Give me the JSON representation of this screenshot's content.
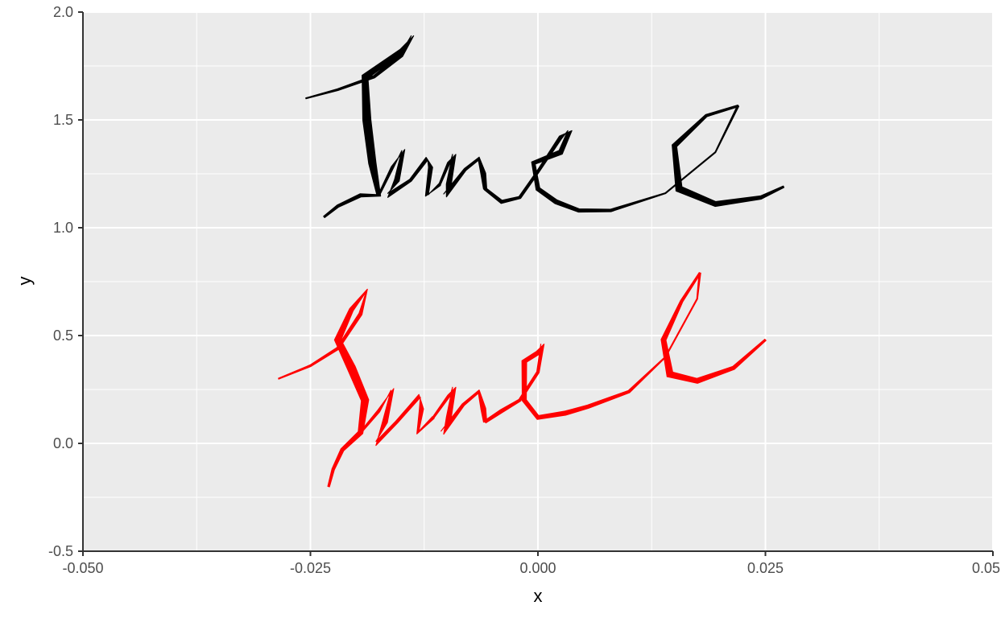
{
  "chart_data": {
    "type": "line",
    "title": "",
    "xlabel": "x",
    "ylabel": "y",
    "xlim": [
      -0.05,
      0.05
    ],
    "ylim": [
      -0.5,
      2.0
    ],
    "x_ticks": [
      -0.05,
      -0.025,
      0.0,
      0.025,
      0.05
    ],
    "x_tick_labels": [
      "-0.050",
      "-0.025",
      "0.000",
      "0.025",
      "0.05"
    ],
    "y_ticks": [
      -0.5,
      0.0,
      0.5,
      1.0,
      1.5,
      2.0
    ],
    "y_tick_labels": [
      "-0.5",
      "0.0",
      "0.5",
      "1.0",
      "1.5",
      "2.0"
    ],
    "grid": true,
    "legend": "none",
    "panel_background": "#ebebeb",
    "grid_color": "#ffffff",
    "series": [
      {
        "color": "#000000",
        "style": "signature-ribbon",
        "strokes": [
          {
            "part": "J",
            "path": [
              [
                -0.0255,
                1.6
              ],
              [
                -0.022,
                1.64
              ],
              [
                -0.018,
                1.7
              ],
              [
                -0.015,
                1.8
              ],
              [
                -0.0138,
                1.89
              ],
              [
                -0.015,
                1.82
              ],
              [
                -0.019,
                1.7
              ],
              [
                -0.0188,
                1.5
              ],
              [
                -0.0182,
                1.3
              ],
              [
                -0.0175,
                1.15
              ],
              [
                -0.0195,
                1.15
              ],
              [
                -0.022,
                1.1
              ],
              [
                -0.0235,
                1.05
              ]
            ],
            "widths": [
              1,
              2,
              3,
              4,
              3,
              5,
              8,
              10,
              9,
              5,
              4,
              3,
              2
            ]
          },
          {
            "part": "u",
            "path": [
              [
                -0.0175,
                1.15
              ],
              [
                -0.016,
                1.28
              ],
              [
                -0.0148,
                1.36
              ],
              [
                -0.0155,
                1.22
              ],
              [
                -0.0165,
                1.15
              ],
              [
                -0.014,
                1.22
              ],
              [
                -0.0122,
                1.32
              ],
              [
                -0.0118,
                1.28
              ],
              [
                -0.0122,
                1.15
              ],
              [
                -0.0108,
                1.2
              ]
            ],
            "widths": [
              2,
              3,
              4,
              6,
              5,
              3,
              4,
              5,
              4,
              3
            ]
          },
          {
            "part": "n",
            "path": [
              [
                -0.0108,
                1.2
              ],
              [
                -0.0098,
                1.3
              ],
              [
                -0.0092,
                1.34
              ],
              [
                -0.0098,
                1.2
              ],
              [
                -0.0102,
                1.15
              ],
              [
                -0.008,
                1.27
              ],
              [
                -0.0065,
                1.32
              ],
              [
                -0.006,
                1.25
              ],
              [
                -0.0058,
                1.18
              ]
            ],
            "widths": [
              2,
              3,
              4,
              6,
              5,
              3,
              4,
              6,
              4
            ]
          },
          {
            "part": "e",
            "path": [
              [
                -0.0058,
                1.18
              ],
              [
                -0.004,
                1.12
              ],
              [
                -0.002,
                1.14
              ],
              [
                0.0,
                1.26
              ],
              [
                0.0025,
                1.42
              ],
              [
                0.0035,
                1.45
              ],
              [
                0.0025,
                1.35
              ],
              [
                -0.0005,
                1.3
              ],
              [
                0.0,
                1.18
              ],
              [
                0.002,
                1.12
              ],
              [
                0.0045,
                1.08
              ],
              [
                0.008,
                1.08
              ],
              [
                0.014,
                1.16
              ],
              [
                0.0195,
                1.35
              ],
              [
                0.022,
                1.565
              ]
            ],
            "widths": [
              3,
              4,
              3,
              3,
              4,
              5,
              6,
              5,
              5,
              5,
              4,
              3,
              1,
              1,
              2
            ]
          },
          {
            "part": "C",
            "path": [
              [
                0.022,
                1.565
              ],
              [
                0.0185,
                1.52
              ],
              [
                0.015,
                1.38
              ],
              [
                0.0155,
                1.18
              ],
              [
                0.0195,
                1.11
              ],
              [
                0.0245,
                1.14
              ],
              [
                0.027,
                1.19
              ]
            ],
            "widths": [
              2,
              3,
              6,
              9,
              6,
              4,
              2
            ]
          }
        ]
      },
      {
        "color": "#ff0000",
        "style": "signature-ribbon",
        "strokes": [
          {
            "part": "J",
            "path": [
              [
                -0.0285,
                0.3
              ],
              [
                -0.025,
                0.36
              ],
              [
                -0.022,
                0.44
              ],
              [
                -0.0195,
                0.6
              ],
              [
                -0.0188,
                0.71
              ],
              [
                -0.0205,
                0.62
              ],
              [
                -0.022,
                0.48
              ],
              [
                -0.0205,
                0.35
              ],
              [
                -0.019,
                0.2
              ],
              [
                -0.0195,
                0.05
              ],
              [
                -0.0215,
                -0.03
              ],
              [
                -0.0225,
                -0.12
              ],
              [
                -0.023,
                -0.2
              ]
            ],
            "widths": [
              1,
              2,
              3,
              4,
              3,
              5,
              8,
              10,
              9,
              6,
              4,
              3,
              2
            ]
          },
          {
            "part": "u",
            "path": [
              [
                -0.0195,
                0.05
              ],
              [
                -0.0175,
                0.15
              ],
              [
                -0.016,
                0.25
              ],
              [
                -0.0168,
                0.1
              ],
              [
                -0.0178,
                0.0
              ],
              [
                -0.0155,
                0.1
              ],
              [
                -0.013,
                0.22
              ],
              [
                -0.0128,
                0.16
              ],
              [
                -0.0132,
                0.05
              ],
              [
                -0.0115,
                0.12
              ]
            ],
            "widths": [
              2,
              3,
              4,
              6,
              5,
              3,
              4,
              5,
              4,
              3
            ]
          },
          {
            "part": "n",
            "path": [
              [
                -0.0115,
                0.12
              ],
              [
                -0.0098,
                0.22
              ],
              [
                -0.0092,
                0.26
              ],
              [
                -0.0098,
                0.12
              ],
              [
                -0.0105,
                0.05
              ],
              [
                -0.0082,
                0.18
              ],
              [
                -0.0065,
                0.24
              ],
              [
                -0.006,
                0.16
              ],
              [
                -0.0058,
                0.1
              ]
            ],
            "widths": [
              2,
              3,
              4,
              6,
              5,
              3,
              4,
              6,
              4
            ]
          },
          {
            "part": "e",
            "path": [
              [
                -0.0058,
                0.1
              ],
              [
                -0.004,
                0.15
              ],
              [
                -0.002,
                0.2
              ],
              [
                0.0,
                0.33
              ],
              [
                0.0005,
                0.46
              ],
              [
                0.0,
                0.42
              ],
              [
                -0.0015,
                0.38
              ],
              [
                -0.0015,
                0.2
              ],
              [
                0.0,
                0.12
              ],
              [
                0.003,
                0.14
              ],
              [
                0.0055,
                0.17
              ],
              [
                0.01,
                0.24
              ],
              [
                0.014,
                0.4
              ],
              [
                0.0175,
                0.67
              ],
              [
                0.0178,
                0.79
              ]
            ],
            "widths": [
              3,
              4,
              3,
              3,
              4,
              5,
              6,
              5,
              5,
              5,
              4,
              3,
              1,
              1,
              2
            ]
          },
          {
            "part": "C",
            "path": [
              [
                0.0178,
                0.79
              ],
              [
                0.0158,
                0.66
              ],
              [
                0.0138,
                0.48
              ],
              [
                0.0145,
                0.32
              ],
              [
                0.0175,
                0.29
              ],
              [
                0.0215,
                0.35
              ],
              [
                0.025,
                0.48
              ]
            ],
            "widths": [
              2,
              3,
              6,
              9,
              6,
              4,
              2
            ]
          }
        ]
      }
    ]
  }
}
